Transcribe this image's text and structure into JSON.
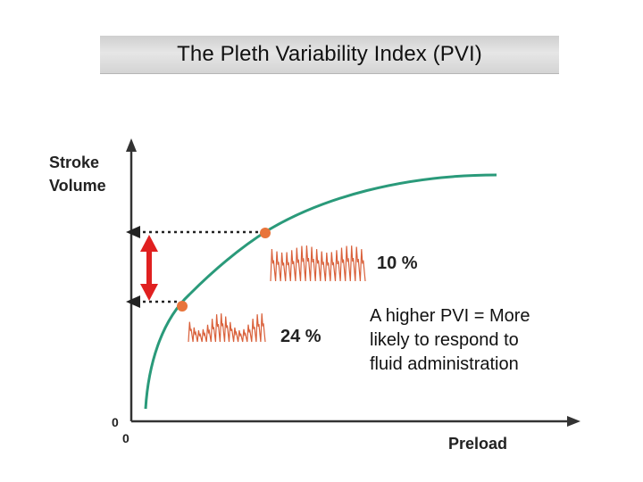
{
  "title": "The Pleth Variability Index (PVI)",
  "axes": {
    "y_label_line1": "Stroke",
    "y_label_line2": "Volume",
    "x_label": "Preload",
    "y_origin": "0",
    "x_origin": "0"
  },
  "points": [
    {
      "pvi_label": "10 %"
    },
    {
      "pvi_label": "24 %"
    }
  ],
  "note": {
    "line1": "A higher PVI = More",
    "line2": "likely to respond to",
    "line3": "fluid administration"
  },
  "colors": {
    "curve": "#2a9a7a",
    "axis": "#333333",
    "point": "#e8743b",
    "arrow": "#e02020",
    "waveform": "#d9603a",
    "dotted": "#222222"
  }
}
